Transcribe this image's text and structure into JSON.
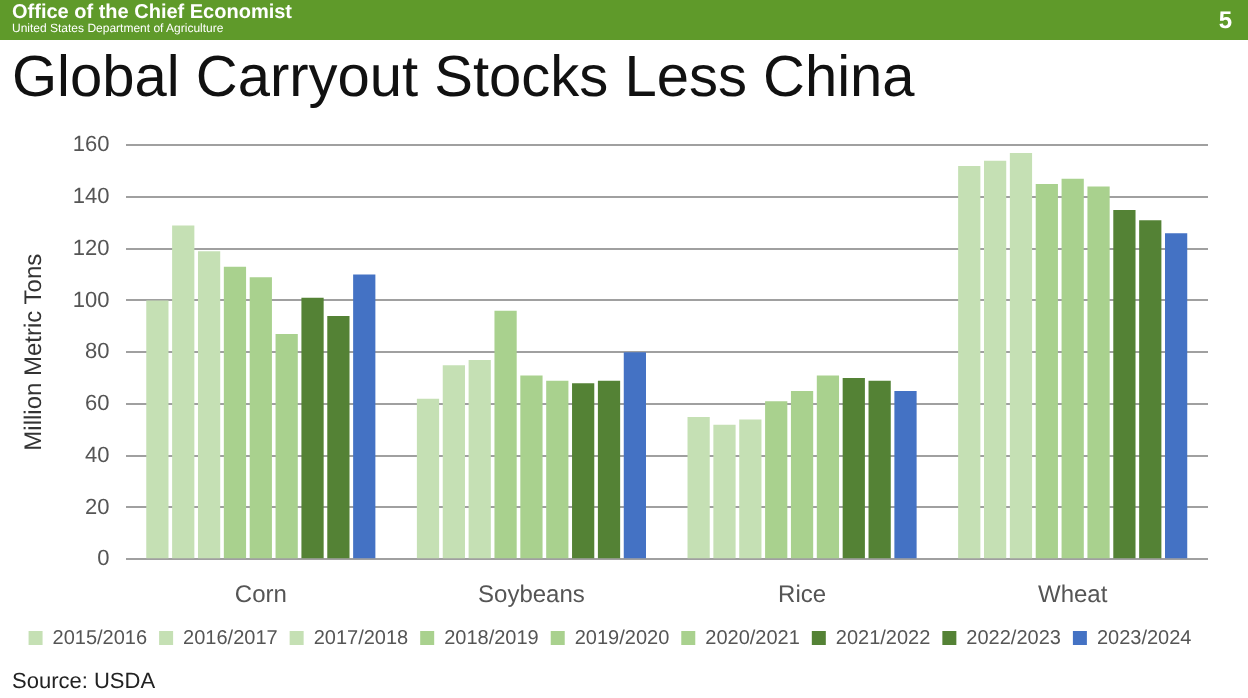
{
  "chart_data": {
    "type": "bar",
    "title": "Global Carryout Stocks Less China",
    "ylabel": "Million Metric Tons",
    "annotations": [
      "Office of the Chief Economist",
      "United States Department of Agriculture",
      "5",
      "Source: USDA"
    ],
    "categories": [
      "Corn",
      "Soybeans",
      "Rice",
      "Wheat"
    ],
    "series": [
      {
        "name": "2015/2016",
        "color": "#c5e0b4",
        "values": [
          100,
          62,
          55,
          152
        ]
      },
      {
        "name": "2016/2017",
        "color": "#c5e0b4",
        "values": [
          129,
          75,
          52,
          154
        ]
      },
      {
        "name": "2017/2018",
        "color": "#c5e0b4",
        "values": [
          119,
          77,
          54,
          157
        ]
      },
      {
        "name": "2018/2019",
        "color": "#a9d18e",
        "values": [
          113,
          96,
          61,
          145
        ]
      },
      {
        "name": "2019/2020",
        "color": "#a9d18e",
        "values": [
          109,
          71,
          65,
          147
        ]
      },
      {
        "name": "2020/2021",
        "color": "#a9d18e",
        "values": [
          87,
          69,
          71,
          144
        ]
      },
      {
        "name": "2021/2022",
        "color": "#548235",
        "values": [
          101,
          68,
          70,
          135
        ]
      },
      {
        "name": "2022/2023",
        "color": "#548235",
        "values": [
          94,
          69,
          69,
          131
        ]
      },
      {
        "name": "2023/2024",
        "color": "#4472c4",
        "values": [
          110,
          80,
          65,
          126
        ]
      }
    ],
    "ylim": [
      0,
      160
    ],
    "yticks": [
      0,
      20,
      40,
      60,
      80,
      100,
      120,
      140,
      160
    ],
    "grid": "y",
    "legend": "bottom"
  }
}
